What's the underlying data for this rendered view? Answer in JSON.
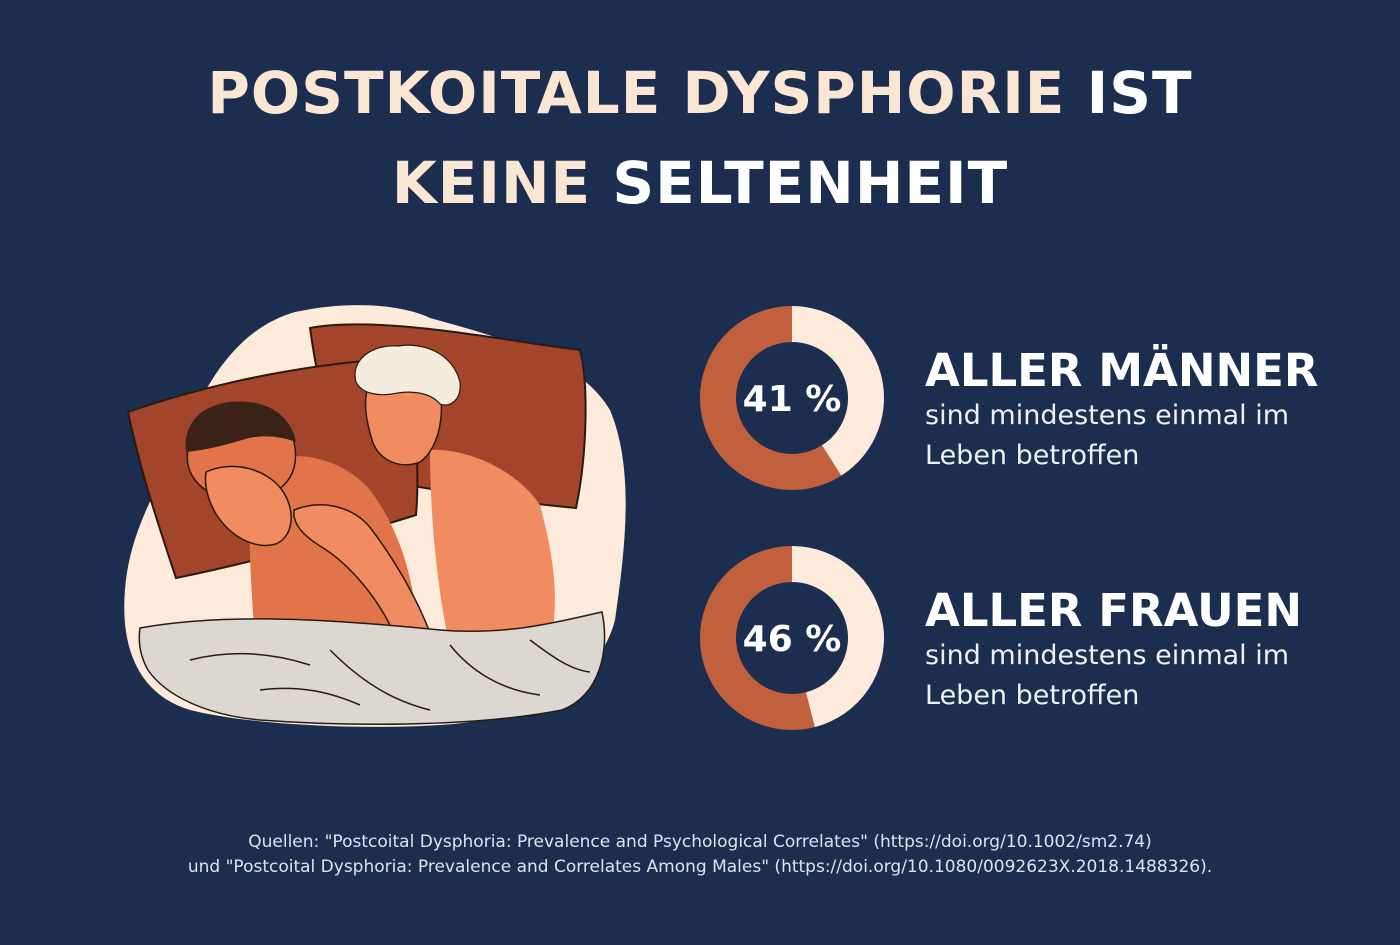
{
  "title": {
    "line1_main": "POSTKOITALE DYSPHORIE",
    "line1_highlight": "IST",
    "line2_main": "KEINE",
    "line2_highlight": "SELTENHEIT"
  },
  "colors": {
    "background": "#1c2e4f",
    "title": "#fbe6d3",
    "donut_filled": "#c2603d",
    "donut_remaining": "#fdeadb"
  },
  "chart_data": [
    {
      "type": "pie",
      "variant": "donut",
      "value": 41,
      "max": 100,
      "center_label": "41 %",
      "heading": "ALLER MÄNNER",
      "description": "sind mindestens einmal im Leben betroffen"
    },
    {
      "type": "pie",
      "variant": "donut",
      "value": 46,
      "max": 100,
      "center_label": "46 %",
      "heading": "ALLER FRAUEN",
      "description": "sind mindestens einmal im Leben betroffen"
    }
  ],
  "sources": {
    "line1": "Quellen: \"Postcoital Dysphoria: Prevalence and Psychological Correlates\" (https://doi.org/10.1002/sm2.74)",
    "line2": "und \"Postcoital Dysphoria: Prevalence and Correlates Among Males\" (https://doi.org/10.1080/0092623X.2018.1488326)."
  }
}
